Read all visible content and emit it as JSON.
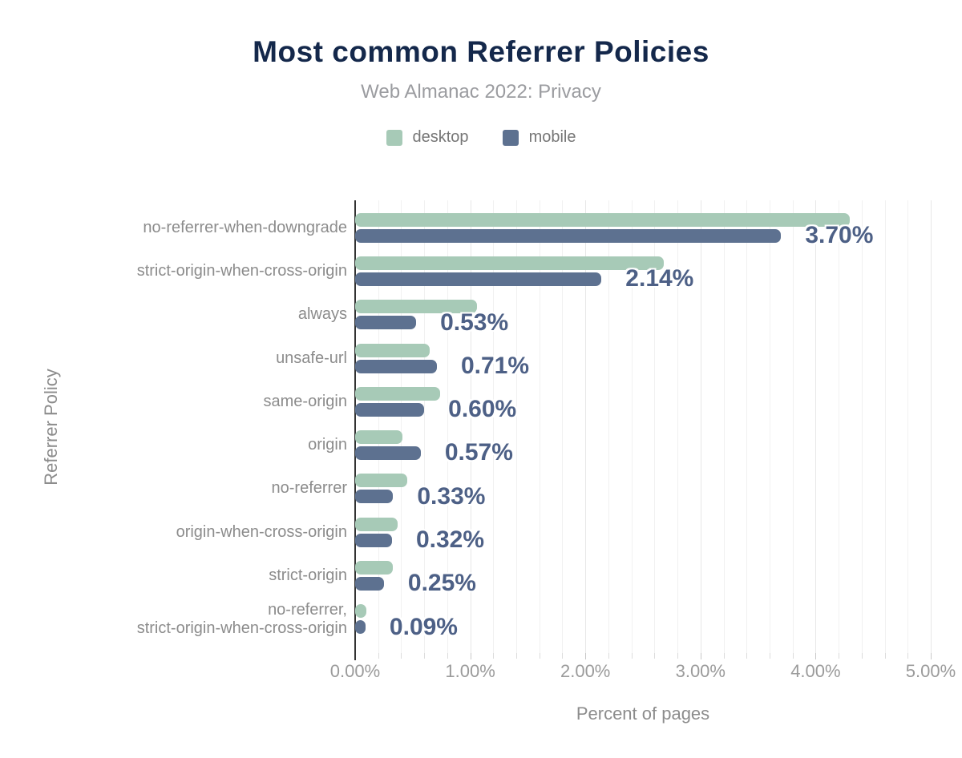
{
  "title": "Most common Referrer Policies",
  "subtitle": "Web Almanac 2022: Privacy",
  "legend": [
    {
      "label": "desktop",
      "color": "#a7cab7"
    },
    {
      "label": "mobile",
      "color": "#5d7190"
    }
  ],
  "colors": {
    "title": "#14284b",
    "subtitle": "#9b9ca0",
    "category_label": "#8c8c8c",
    "tick_label": "#9b9b9b",
    "value_label": "#4d6086",
    "axis_line": "#333333",
    "gridline_minor": "#f1f1f1",
    "gridline_major": "#e7e7e7",
    "desktop": "#a7cab7",
    "mobile": "#5d7190"
  },
  "chart_data": {
    "type": "bar",
    "orientation": "horizontal",
    "title": "Most common Referrer Policies",
    "subtitle": "Web Almanac 2022: Privacy",
    "xlabel": "Percent of pages",
    "ylabel": "Referrer Policy",
    "xlim": [
      0,
      5
    ],
    "x_ticks": [
      "0.00%",
      "1.00%",
      "2.00%",
      "3.00%",
      "4.00%",
      "5.00%"
    ],
    "grid": {
      "minor_step": 0.2,
      "major_step": 1.0,
      "vertical": true
    },
    "legend_position": "top",
    "categories": [
      "no-referrer-when-downgrade",
      "strict-origin-when-cross-origin",
      "always",
      "unsafe-url",
      "same-origin",
      "origin",
      "no-referrer",
      "origin-when-cross-origin",
      "strict-origin",
      "no-referrer,\nstrict-origin-when-cross-origin"
    ],
    "series": [
      {
        "name": "desktop",
        "color": "#a7cab7",
        "values": [
          4.3,
          2.68,
          1.06,
          0.65,
          0.74,
          0.41,
          0.45,
          0.37,
          0.33,
          0.1
        ]
      },
      {
        "name": "mobile",
        "color": "#5d7190",
        "values": [
          3.7,
          2.14,
          0.53,
          0.71,
          0.6,
          0.57,
          0.33,
          0.32,
          0.25,
          0.09
        ]
      }
    ],
    "data_labels": [
      "3.70%",
      "2.14%",
      "0.53%",
      "0.71%",
      "0.60%",
      "0.57%",
      "0.33%",
      "0.32%",
      "0.25%",
      "0.09%"
    ],
    "data_labels_series": "mobile"
  }
}
